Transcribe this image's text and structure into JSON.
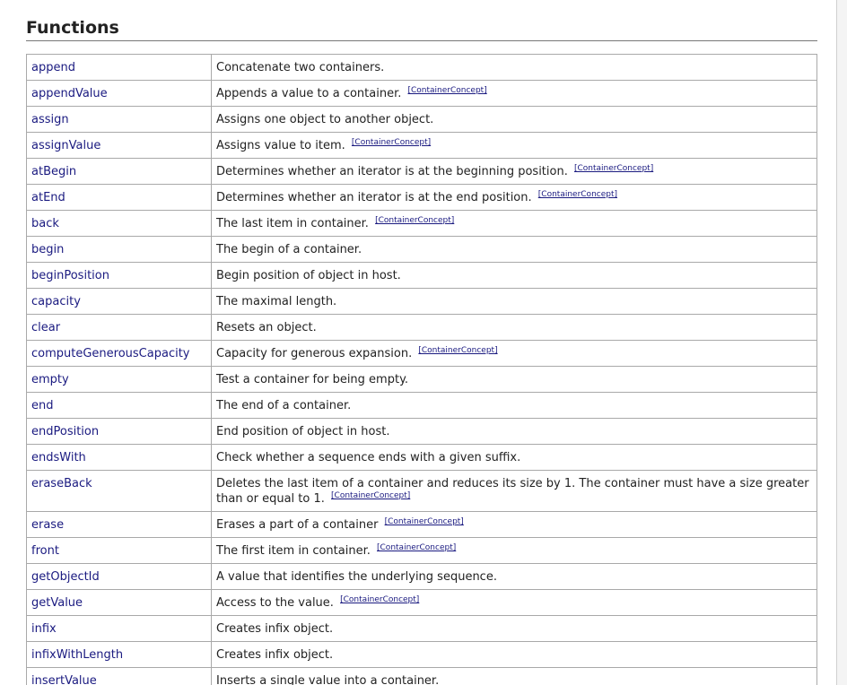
{
  "section": {
    "title": "Functions"
  },
  "functions": [
    {
      "name": "append",
      "description": "Concatenate two containers.",
      "tag": ""
    },
    {
      "name": "appendValue",
      "description": "Appends a value to a container.",
      "tag": "[ContainerConcept]"
    },
    {
      "name": "assign",
      "description": "Assigns one object to another object.",
      "tag": ""
    },
    {
      "name": "assignValue",
      "description": "Assigns value to item.",
      "tag": "[ContainerConcept]"
    },
    {
      "name": "atBegin",
      "description": "Determines whether an iterator is at the beginning position.",
      "tag": "[ContainerConcept]"
    },
    {
      "name": "atEnd",
      "description": "Determines whether an iterator is at the end position.",
      "tag": "[ContainerConcept]"
    },
    {
      "name": "back",
      "description": "The last item in container.",
      "tag": "[ContainerConcept]"
    },
    {
      "name": "begin",
      "description": "The begin of a container.",
      "tag": ""
    },
    {
      "name": "beginPosition",
      "description": "Begin position of object in host.",
      "tag": ""
    },
    {
      "name": "capacity",
      "description": "The maximal length.",
      "tag": ""
    },
    {
      "name": "clear",
      "description": "Resets an object.",
      "tag": ""
    },
    {
      "name": "computeGenerousCapacity",
      "description": "Capacity for generous expansion.",
      "tag": "[ContainerConcept]"
    },
    {
      "name": "empty",
      "description": "Test a container for being empty.",
      "tag": ""
    },
    {
      "name": "end",
      "description": "The end of a container.",
      "tag": ""
    },
    {
      "name": "endPosition",
      "description": "End position of object in host.",
      "tag": ""
    },
    {
      "name": "endsWith",
      "description": "Check whether a sequence ends with a given suffix.",
      "tag": ""
    },
    {
      "name": "eraseBack",
      "description": "Deletes the last item of a container and reduces its size by 1. The container must have a size greater than or equal to 1.",
      "tag": "[ContainerConcept]"
    },
    {
      "name": "erase",
      "description": "Erases a part of a container",
      "tag": "[ContainerConcept]"
    },
    {
      "name": "front",
      "description": "The first item in container.",
      "tag": "[ContainerConcept]"
    },
    {
      "name": "getObjectId",
      "description": "A value that identifies the underlying sequence.",
      "tag": ""
    },
    {
      "name": "getValue",
      "description": "Access to the value.",
      "tag": "[ContainerConcept]"
    },
    {
      "name": "infix",
      "description": "Creates infix object.",
      "tag": ""
    },
    {
      "name": "infixWithLength",
      "description": "Creates infix object.",
      "tag": ""
    },
    {
      "name": "insertValue",
      "description": "Inserts a single value into a container.",
      "tag": ""
    }
  ]
}
